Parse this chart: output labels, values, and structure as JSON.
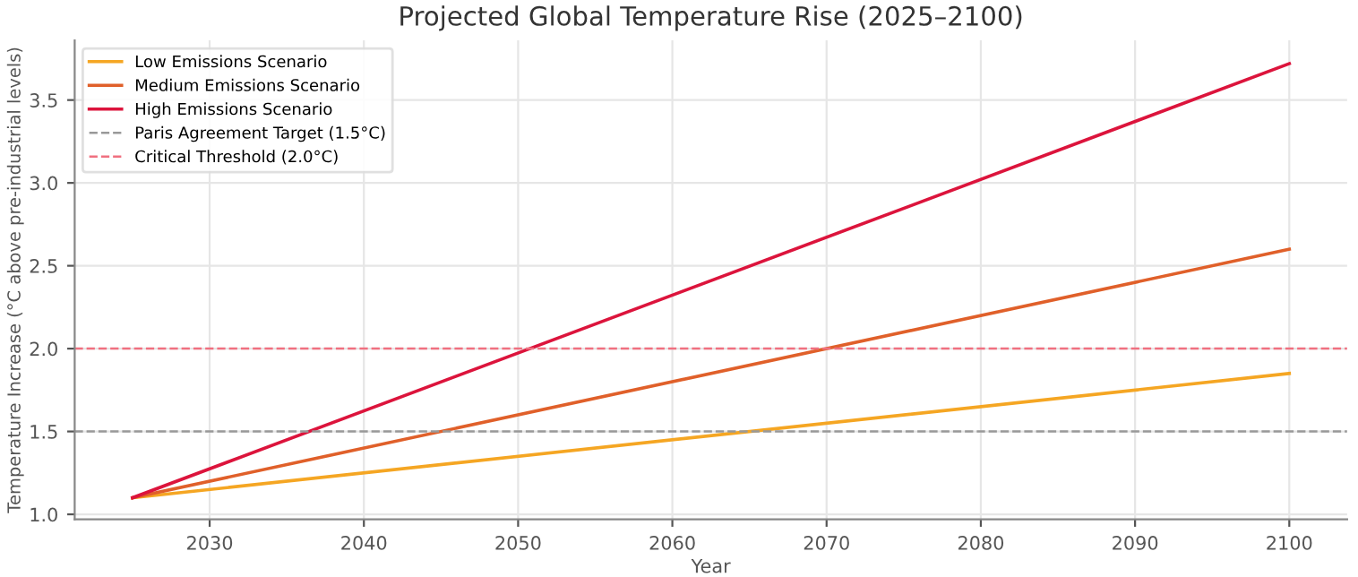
{
  "chart_data": {
    "type": "line",
    "title": "Projected Global Temperature Rise (2025–2100)",
    "xlabel": "Year",
    "ylabel": "Temperature Increase (°C above pre-industrial levels)",
    "x": [
      2025,
      2100
    ],
    "series": [
      {
        "name": "Low Emissions Scenario",
        "color": "#f5a623",
        "values": [
          1.1,
          1.85
        ]
      },
      {
        "name": "Medium Emissions Scenario",
        "color": "#e0602a",
        "values": [
          1.1,
          2.6
        ]
      },
      {
        "name": "High Emissions Scenario",
        "color": "#dc143c",
        "values": [
          1.1,
          3.72
        ]
      }
    ],
    "ref_lines": [
      {
        "axis": "y",
        "value": 1.5,
        "label": "Paris Agreement Target (1.5°C)",
        "color": "#999999",
        "line_style": "dashed"
      },
      {
        "axis": "y",
        "value": 2.0,
        "label": "Critical Threshold (2.0°C)",
        "color": "#f07080",
        "line_style": "dashed"
      }
    ],
    "xlim": [
      2021.25,
      2103.75
    ],
    "ylim": [
      0.97,
      3.86
    ],
    "xticks": [
      2030,
      2040,
      2050,
      2060,
      2070,
      2080,
      2090,
      2100
    ],
    "yticks": [
      {
        "value": 1,
        "label": "1.0"
      },
      1.5,
      {
        "value": 2,
        "label": "2.0"
      },
      2.5,
      {
        "value": 3,
        "label": "3.0"
      },
      3.5
    ],
    "grid": true,
    "legend": "top left",
    "line_style": "solid"
  }
}
